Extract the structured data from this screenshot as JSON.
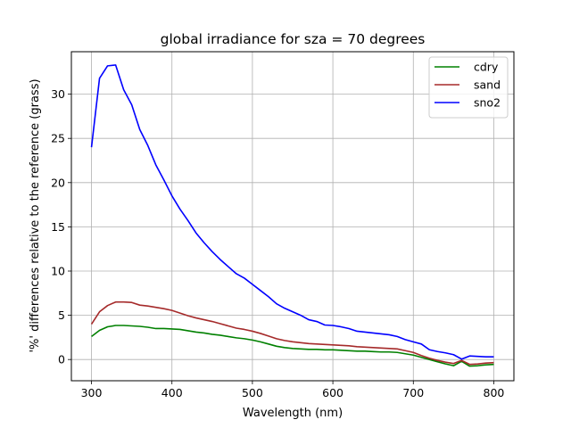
{
  "chart_data": {
    "type": "line",
    "title": "global irradiance for sza = 70 degrees",
    "xlabel": "Wavelength (nm)",
    "ylabel": "'%' differences relative to the reference (grass)",
    "xlim": [
      275,
      825
    ],
    "ylim": [
      -2.4,
      34.8
    ],
    "xticks": [
      300,
      400,
      500,
      600,
      700,
      800
    ],
    "yticks": [
      0,
      5,
      10,
      15,
      20,
      25,
      30
    ],
    "grid": true,
    "legend_position": "top-right",
    "x": [
      300,
      310,
      320,
      330,
      340,
      350,
      360,
      370,
      380,
      390,
      400,
      410,
      420,
      430,
      440,
      450,
      460,
      470,
      480,
      490,
      500,
      510,
      520,
      530,
      540,
      550,
      560,
      570,
      580,
      590,
      600,
      610,
      620,
      630,
      640,
      650,
      660,
      670,
      680,
      690,
      700,
      710,
      720,
      730,
      740,
      750,
      760,
      770,
      780,
      790,
      800
    ],
    "series": [
      {
        "name": "cdry",
        "color": "#008000",
        "values": [
          2.6,
          3.3,
          3.7,
          3.85,
          3.85,
          3.8,
          3.75,
          3.65,
          3.5,
          3.5,
          3.45,
          3.4,
          3.25,
          3.1,
          3.0,
          2.85,
          2.75,
          2.6,
          2.45,
          2.35,
          2.2,
          2.0,
          1.75,
          1.5,
          1.35,
          1.25,
          1.2,
          1.15,
          1.15,
          1.1,
          1.1,
          1.05,
          1.0,
          0.95,
          0.95,
          0.9,
          0.85,
          0.85,
          0.8,
          0.65,
          0.5,
          0.25,
          0.0,
          -0.25,
          -0.5,
          -0.7,
          -0.2,
          -0.75,
          -0.7,
          -0.6,
          -0.55
        ]
      },
      {
        "name": "sand",
        "color": "#a52a2a",
        "values": [
          4.0,
          5.4,
          6.1,
          6.5,
          6.5,
          6.45,
          6.15,
          6.05,
          5.9,
          5.75,
          5.55,
          5.25,
          4.95,
          4.7,
          4.5,
          4.3,
          4.05,
          3.8,
          3.55,
          3.4,
          3.2,
          2.95,
          2.65,
          2.35,
          2.15,
          2.0,
          1.9,
          1.8,
          1.75,
          1.7,
          1.65,
          1.6,
          1.55,
          1.45,
          1.4,
          1.35,
          1.3,
          1.25,
          1.2,
          1.0,
          0.8,
          0.45,
          0.15,
          -0.1,
          -0.3,
          -0.45,
          -0.1,
          -0.55,
          -0.5,
          -0.4,
          -0.35
        ]
      },
      {
        "name": "sno2",
        "color": "#0000ff",
        "values": [
          24.0,
          31.8,
          33.2,
          33.3,
          30.5,
          28.8,
          26.0,
          24.2,
          22.0,
          20.3,
          18.5,
          17.0,
          15.7,
          14.3,
          13.2,
          12.2,
          11.3,
          10.5,
          9.7,
          9.2,
          8.5,
          7.8,
          7.1,
          6.3,
          5.8,
          5.4,
          5.0,
          4.5,
          4.3,
          3.9,
          3.85,
          3.7,
          3.5,
          3.2,
          3.1,
          3.0,
          2.9,
          2.8,
          2.6,
          2.25,
          2.0,
          1.75,
          1.1,
          0.9,
          0.75,
          0.55,
          0.05,
          0.4,
          0.35,
          0.3,
          0.3
        ]
      }
    ]
  }
}
